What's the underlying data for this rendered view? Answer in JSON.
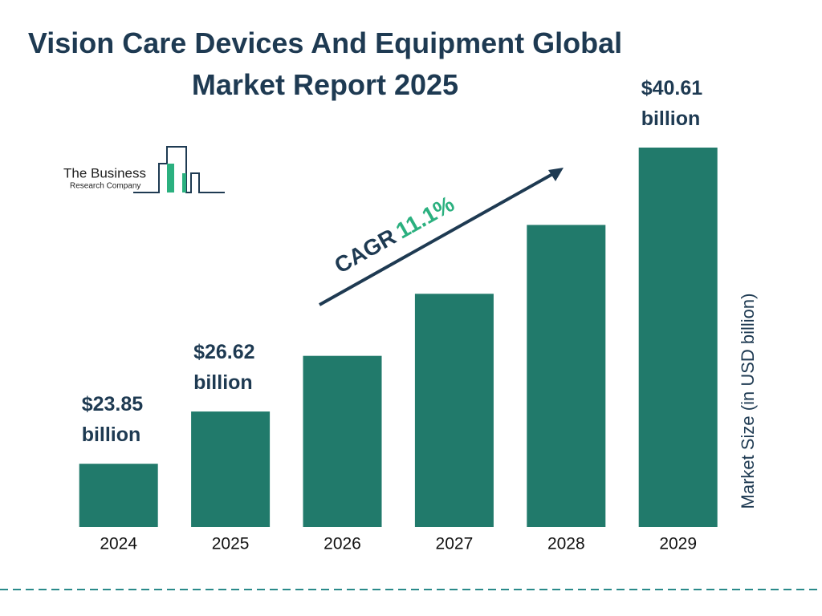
{
  "chart_data": {
    "type": "bar",
    "title": "Vision Care Devices And Equipment Global Market Report 2025",
    "logo": {
      "line1": "The Business",
      "line2": "Research Company"
    },
    "y_label": "Market Size (in USD billion)",
    "annotation": {
      "label": "CAGR",
      "value": "11.1%"
    },
    "categories": [
      "2024",
      "2025",
      "2026",
      "2027",
      "2028",
      "2029"
    ],
    "values": [
      23.85,
      26.62,
      29.57,
      32.86,
      36.51,
      40.61
    ],
    "value_labels": [
      "$23.85 billion",
      "$26.62 billion",
      null,
      null,
      null,
      "$40.61 billion"
    ],
    "color": "#217a6b",
    "ylim": [
      20.5,
      40.61
    ]
  }
}
